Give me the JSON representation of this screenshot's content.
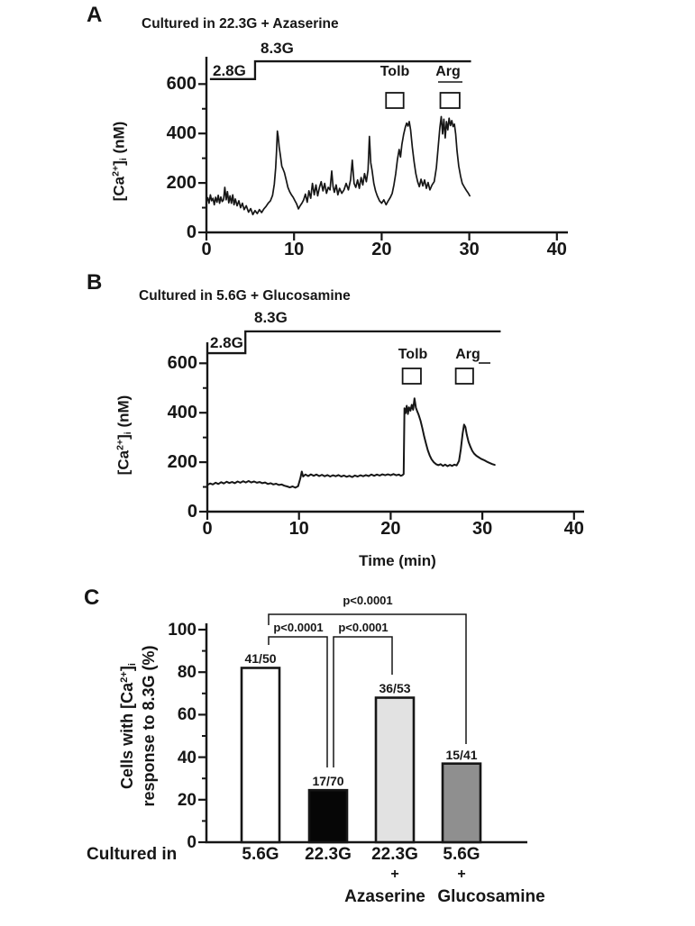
{
  "figure": {
    "background": "#ffffff",
    "ink": "#161616"
  },
  "chart_data": [
    {
      "panel_letter": "A",
      "type": "line",
      "title": "Cultured in 22.3G + Azaserine",
      "xlabel": "",
      "ylabel_parts": {
        "open": "[Ca",
        "sup": "2+",
        "close": "]",
        "sub": "i",
        "unit": " (nM)"
      },
      "xlim": [
        0,
        40
      ],
      "ylim": [
        0,
        600
      ],
      "x_ticks": [
        0,
        10,
        20,
        30,
        40
      ],
      "y_ticks": [
        0,
        200,
        400,
        600
      ],
      "y_minor_ticks": [
        100,
        300,
        500
      ],
      "glucose_steps": {
        "low_label": "2.8G",
        "high_label": "8.3G",
        "low_t_range": [
          0.4,
          5.55
        ],
        "high_t_range": [
          5.55,
          30.2
        ],
        "low_level_nM": 620,
        "high_level_nM": 692
      },
      "markers": [
        {
          "label": "Tolb",
          "t_label": 21.5,
          "square_t_range": [
            20.5,
            22.5
          ]
        },
        {
          "label": "Arg",
          "t_label": 27.4,
          "square_t_range": [
            26.7,
            28.9
          ]
        }
      ],
      "points": [
        [
          0,
          125
        ],
        [
          0.15,
          140
        ],
        [
          0.3,
          118
        ],
        [
          0.45,
          152
        ],
        [
          0.6,
          128
        ],
        [
          0.75,
          138
        ],
        [
          0.9,
          112
        ],
        [
          1.05,
          142
        ],
        [
          1.2,
          122
        ],
        [
          1.35,
          150
        ],
        [
          1.5,
          118
        ],
        [
          1.65,
          143
        ],
        [
          1.8,
          125
        ],
        [
          1.95,
          132
        ],
        [
          2.1,
          182
        ],
        [
          2.25,
          132
        ],
        [
          2.4,
          165
        ],
        [
          2.55,
          120
        ],
        [
          2.7,
          148
        ],
        [
          2.85,
          118
        ],
        [
          3,
          152
        ],
        [
          3.15,
          112
        ],
        [
          3.3,
          135
        ],
        [
          3.5,
          108
        ],
        [
          3.7,
          128
        ],
        [
          3.9,
          100
        ],
        [
          4.1,
          118
        ],
        [
          4.3,
          92
        ],
        [
          4.55,
          108
        ],
        [
          4.8,
          82
        ],
        [
          5.05,
          96
        ],
        [
          5.3,
          72
        ],
        [
          5.55,
          88
        ],
        [
          5.8,
          76
        ],
        [
          6.05,
          92
        ],
        [
          6.3,
          80
        ],
        [
          6.55,
          95
        ],
        [
          6.8,
          105
        ],
        [
          7.05,
          118
        ],
        [
          7.3,
          128
        ],
        [
          7.55,
          150
        ],
        [
          7.75,
          195
        ],
        [
          7.9,
          260
        ],
        [
          8,
          330
        ],
        [
          8.1,
          410
        ],
        [
          8.2,
          385
        ],
        [
          8.3,
          345
        ],
        [
          8.45,
          310
        ],
        [
          8.6,
          268
        ],
        [
          8.75,
          255
        ],
        [
          8.9,
          242
        ],
        [
          9.1,
          212
        ],
        [
          9.3,
          182
        ],
        [
          9.5,
          165
        ],
        [
          9.7,
          152
        ],
        [
          9.9,
          142
        ],
        [
          10.1,
          128
        ],
        [
          10.3,
          115
        ],
        [
          10.5,
          95
        ],
        [
          10.7,
          108
        ],
        [
          10.9,
          118
        ],
        [
          11.1,
          132
        ],
        [
          11.3,
          155
        ],
        [
          11.5,
          122
        ],
        [
          11.7,
          168
        ],
        [
          11.9,
          138
        ],
        [
          12.1,
          198
        ],
        [
          12.3,
          152
        ],
        [
          12.5,
          192
        ],
        [
          12.7,
          148
        ],
        [
          12.9,
          182
        ],
        [
          13.1,
          205
        ],
        [
          13.3,
          168
        ],
        [
          13.5,
          198
        ],
        [
          13.7,
          158
        ],
        [
          13.9,
          182
        ],
        [
          14.1,
          172
        ],
        [
          14.3,
          248
        ],
        [
          14.45,
          185
        ],
        [
          14.6,
          162
        ],
        [
          14.8,
          192
        ],
        [
          15,
          152
        ],
        [
          15.2,
          178
        ],
        [
          15.45,
          158
        ],
        [
          15.7,
          172
        ],
        [
          15.95,
          198
        ],
        [
          16.2,
          172
        ],
        [
          16.45,
          212
        ],
        [
          16.65,
          292
        ],
        [
          16.85,
          198
        ],
        [
          17.05,
          182
        ],
        [
          17.25,
          212
        ],
        [
          17.45,
          178
        ],
        [
          17.65,
          222
        ],
        [
          17.85,
          192
        ],
        [
          18.05,
          238
        ],
        [
          18.25,
          205
        ],
        [
          18.45,
          252
        ],
        [
          18.6,
          388
        ],
        [
          18.75,
          282
        ],
        [
          18.9,
          252
        ],
        [
          19.1,
          198
        ],
        [
          19.3,
          168
        ],
        [
          19.5,
          148
        ],
        [
          19.75,
          128
        ],
        [
          20,
          118
        ],
        [
          20.25,
          132
        ],
        [
          20.5,
          112
        ],
        [
          20.75,
          128
        ],
        [
          21,
          142
        ],
        [
          21.2,
          158
        ],
        [
          21.4,
          192
        ],
        [
          21.6,
          238
        ],
        [
          21.8,
          295
        ],
        [
          22,
          335
        ],
        [
          22.15,
          305
        ],
        [
          22.3,
          355
        ],
        [
          22.5,
          395
        ],
        [
          22.7,
          425
        ],
        [
          22.85,
          442
        ],
        [
          23,
          430
        ],
        [
          23.15,
          448
        ],
        [
          23.3,
          415
        ],
        [
          23.5,
          345
        ],
        [
          23.7,
          285
        ],
        [
          23.9,
          238
        ],
        [
          24.1,
          205
        ],
        [
          24.3,
          185
        ],
        [
          24.5,
          215
        ],
        [
          24.7,
          188
        ],
        [
          24.9,
          212
        ],
        [
          25.1,
          178
        ],
        [
          25.3,
          202
        ],
        [
          25.5,
          172
        ],
        [
          25.75,
          192
        ],
        [
          26,
          205
        ],
        [
          26.25,
          262
        ],
        [
          26.45,
          345
        ],
        [
          26.65,
          425
        ],
        [
          26.8,
          468
        ],
        [
          26.95,
          398
        ],
        [
          27.1,
          458
        ],
        [
          27.25,
          382
        ],
        [
          27.4,
          448
        ],
        [
          27.55,
          415
        ],
        [
          27.7,
          462
        ],
        [
          27.85,
          432
        ],
        [
          28,
          452
        ],
        [
          28.15,
          428
        ],
        [
          28.3,
          438
        ],
        [
          28.45,
          398
        ],
        [
          28.6,
          330
        ],
        [
          28.8,
          268
        ],
        [
          29,
          228
        ],
        [
          29.2,
          198
        ],
        [
          29.45,
          182
        ],
        [
          29.7,
          168
        ],
        [
          29.9,
          158
        ],
        [
          30.05,
          148
        ]
      ]
    },
    {
      "panel_letter": "B",
      "type": "line",
      "title": "Cultured in 5.6G + Glucosamine",
      "xlabel": "Time (min)",
      "ylabel_parts": {
        "open": "[Ca",
        "sup": "2+",
        "close": "]",
        "sub": "i",
        "unit": " (nM)"
      },
      "xlim": [
        0,
        40
      ],
      "ylim": [
        0,
        600
      ],
      "x_ticks": [
        0,
        10,
        20,
        30,
        40
      ],
      "y_ticks": [
        0,
        200,
        400,
        600
      ],
      "y_minor_ticks": [
        100,
        300,
        500
      ],
      "glucose_steps": {
        "low_label": "2.8G",
        "high_label": "8.3G",
        "low_t_range": [
          0,
          4.15
        ],
        "high_t_range": [
          4.15,
          32.0
        ],
        "low_level_nM": 641,
        "high_level_nM": 729
      },
      "markers": [
        {
          "label": "Tolb",
          "t_label": 22.4,
          "square_t_range": [
            21.3,
            23.3
          ]
        },
        {
          "label": "Arg",
          "t_label": 28.4,
          "square_t_range": [
            27.1,
            29.0
          ]
        }
      ],
      "points": [
        [
          0,
          108
        ],
        [
          0.3,
          114
        ],
        [
          0.6,
          110
        ],
        [
          0.9,
          117
        ],
        [
          1.2,
          112
        ],
        [
          1.5,
          119
        ],
        [
          1.8,
          114
        ],
        [
          2.1,
          121
        ],
        [
          2.4,
          116
        ],
        [
          2.7,
          120
        ],
        [
          3,
          115
        ],
        [
          3.3,
          122
        ],
        [
          3.6,
          117
        ],
        [
          3.9,
          123
        ],
        [
          4.2,
          118
        ],
        [
          4.5,
          124
        ],
        [
          4.8,
          118
        ],
        [
          5.1,
          122
        ],
        [
          5.4,
          117
        ],
        [
          5.7,
          120
        ],
        [
          6,
          115
        ],
        [
          6.3,
          118
        ],
        [
          6.6,
          112
        ],
        [
          6.9,
          115
        ],
        [
          7.2,
          110
        ],
        [
          7.5,
          113
        ],
        [
          7.8,
          108
        ],
        [
          8.1,
          110
        ],
        [
          8.4,
          105
        ],
        [
          8.7,
          102
        ],
        [
          9,
          98
        ],
        [
          9.3,
          102
        ],
        [
          9.6,
          97
        ],
        [
          9.9,
          103
        ],
        [
          10.15,
          135
        ],
        [
          10.3,
          162
        ],
        [
          10.45,
          142
        ],
        [
          10.7,
          150
        ],
        [
          11,
          144
        ],
        [
          11.3,
          151
        ],
        [
          11.6,
          145
        ],
        [
          11.9,
          150
        ],
        [
          12.2,
          144
        ],
        [
          12.5,
          149
        ],
        [
          12.8,
          143
        ],
        [
          13.1,
          148
        ],
        [
          13.4,
          142
        ],
        [
          13.7,
          147
        ],
        [
          14,
          143
        ],
        [
          14.3,
          148
        ],
        [
          14.6,
          142
        ],
        [
          14.9,
          146
        ],
        [
          15.2,
          141
        ],
        [
          15.5,
          145
        ],
        [
          15.8,
          140
        ],
        [
          16.1,
          146
        ],
        [
          16.4,
          142
        ],
        [
          16.7,
          147
        ],
        [
          17,
          143
        ],
        [
          17.3,
          148
        ],
        [
          17.6,
          144
        ],
        [
          17.9,
          150
        ],
        [
          18.2,
          145
        ],
        [
          18.5,
          150
        ],
        [
          18.8,
          146
        ],
        [
          19.1,
          151
        ],
        [
          19.4,
          147
        ],
        [
          19.7,
          151
        ],
        [
          20,
          147
        ],
        [
          20.3,
          152
        ],
        [
          20.6,
          147
        ],
        [
          20.9,
          150
        ],
        [
          21.1,
          145
        ],
        [
          21.3,
          148
        ],
        [
          21.42,
          152
        ],
        [
          21.5,
          418
        ],
        [
          21.62,
          398
        ],
        [
          21.75,
          428
        ],
        [
          21.88,
          395
        ],
        [
          22,
          422
        ],
        [
          22.15,
          408
        ],
        [
          22.3,
          432
        ],
        [
          22.45,
          412
        ],
        [
          22.6,
          458
        ],
        [
          22.75,
          420
        ],
        [
          22.9,
          405
        ],
        [
          23.05,
          392
        ],
        [
          23.25,
          368
        ],
        [
          23.45,
          338
        ],
        [
          23.65,
          305
        ],
        [
          23.85,
          275
        ],
        [
          24.05,
          248
        ],
        [
          24.25,
          228
        ],
        [
          24.45,
          212
        ],
        [
          24.7,
          200
        ],
        [
          24.95,
          192
        ],
        [
          25.2,
          188
        ],
        [
          25.45,
          192
        ],
        [
          25.7,
          185
        ],
        [
          25.95,
          190
        ],
        [
          26.2,
          184
        ],
        [
          26.45,
          189
        ],
        [
          26.7,
          185
        ],
        [
          26.95,
          190
        ],
        [
          27.2,
          187
        ],
        [
          27.45,
          205
        ],
        [
          27.65,
          252
        ],
        [
          27.85,
          315
        ],
        [
          28,
          352
        ],
        [
          28.15,
          342
        ],
        [
          28.3,
          312
        ],
        [
          28.5,
          282
        ],
        [
          28.7,
          262
        ],
        [
          28.9,
          246
        ],
        [
          29.1,
          235
        ],
        [
          29.35,
          226
        ],
        [
          29.6,
          220
        ],
        [
          29.85,
          214
        ],
        [
          30.1,
          210
        ],
        [
          30.35,
          205
        ],
        [
          30.6,
          200
        ],
        [
          30.85,
          196
        ],
        [
          31.1,
          192
        ],
        [
          31.35,
          189
        ]
      ]
    },
    {
      "panel_letter": "C",
      "type": "bar",
      "ylabel_line1_parts": {
        "pre": "Cells with [Ca",
        "sup": "2+",
        "close": "]",
        "sub": "i"
      },
      "ylabel_line2": "response to 8.3G (%)",
      "ylim": [
        0,
        100
      ],
      "y_ticks": [
        0,
        20,
        40,
        60,
        80,
        100
      ],
      "y_minor_ticks": [
        10,
        30,
        50,
        70,
        90
      ],
      "x_prefix_label": "Cultured in",
      "categories": [
        {
          "line1": "5.6G"
        },
        {
          "line1": "22.3G"
        },
        {
          "line1": "22.3G",
          "line2": "+",
          "line3": "Azaserine"
        },
        {
          "line1": "5.6G",
          "line2": "+",
          "line3": "Glucosamine"
        }
      ],
      "values": [
        82,
        24.5,
        68,
        37
      ],
      "counts": [
        "41/50",
        "17/70",
        "36/53",
        "15/41"
      ],
      "bar_fills": [
        "#ffffff",
        "#060606",
        "#e2e2e2",
        "#8f8f8f"
      ],
      "significance": [
        {
          "label": "p<0.0001",
          "between": [
            "5.6G",
            "22.3G"
          ]
        },
        {
          "label": "p<0.0001",
          "between": [
            "22.3G",
            "22.3G + Azaserine"
          ]
        },
        {
          "label": "p<0.0001",
          "between": [
            "5.6G",
            "5.6G + Glucosamine"
          ]
        }
      ]
    }
  ]
}
